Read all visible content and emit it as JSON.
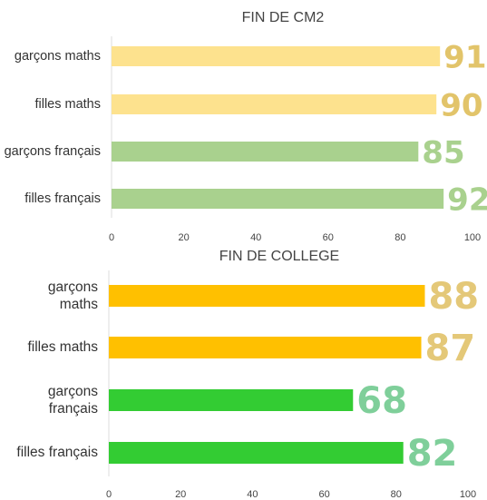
{
  "chart_data": [
    {
      "type": "bar",
      "title": "FIN DE CM2",
      "categories": [
        "garçons maths",
        "filles maths",
        "garçons français",
        "filles français"
      ],
      "values": [
        91,
        90,
        85,
        92
      ],
      "colors": [
        "#fde28e",
        "#fde28e",
        "#a9d18e",
        "#a9d18e"
      ],
      "label_colors": [
        "#e2c46a",
        "#e2c46a",
        "#a9d18e",
        "#a9d18e"
      ],
      "xlim": [
        0,
        100
      ],
      "xticks": [
        0,
        20,
        40,
        60,
        80,
        100
      ]
    },
    {
      "type": "bar",
      "title": "FIN DE COLLEGE",
      "categories": [
        "garçons maths",
        "filles maths",
        "garçons français",
        "filles français"
      ],
      "values": [
        88,
        87,
        68,
        82
      ],
      "colors": [
        "#ffc000",
        "#ffc000",
        "#33cc33",
        "#33cc33"
      ],
      "label_colors": [
        "#e4c878",
        "#e4c878",
        "#7fcf9a",
        "#7fcf9a"
      ],
      "xlim": [
        0,
        100
      ],
      "xticks": [
        0,
        20,
        40,
        60,
        80,
        100
      ]
    }
  ]
}
